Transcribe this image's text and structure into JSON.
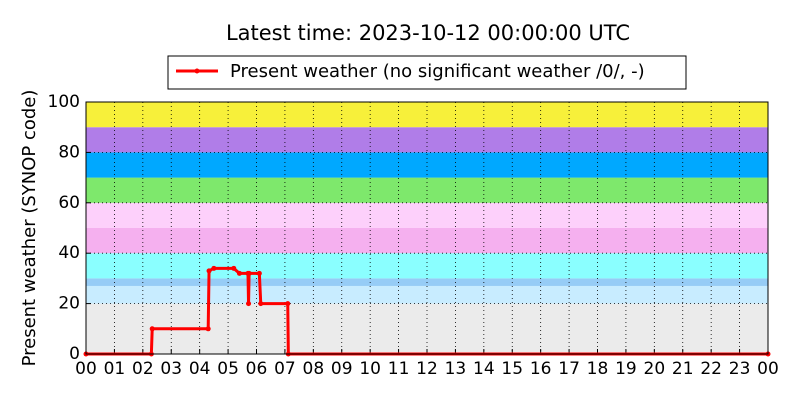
{
  "chart_data": {
    "type": "line",
    "title": "Latest time: 2023-10-12 00:00:00 UTC",
    "y_label": "Present weather (SYNOP code)",
    "bands": [
      {
        "from": 0,
        "to": 20,
        "color": "#ebebeb"
      },
      {
        "from": 20,
        "to": 27,
        "color": "#c8ecff"
      },
      {
        "from": 27,
        "to": 30,
        "color": "#96ccf6"
      },
      {
        "from": 30,
        "to": 40,
        "color": "#8affff"
      },
      {
        "from": 40,
        "to": 50,
        "color": "#f5b0ef"
      },
      {
        "from": 50,
        "to": 60,
        "color": "#fdd0fb"
      },
      {
        "from": 60,
        "to": 70,
        "color": "#7ee86c"
      },
      {
        "from": 70,
        "to": 80,
        "color": "#00a8ff"
      },
      {
        "from": 80,
        "to": 90,
        "color": "#b07de8"
      },
      {
        "from": 90,
        "to": 100,
        "color": "#f7f03a"
      }
    ],
    "x": [
      0,
      2.3,
      2.33,
      4.3,
      4.33,
      4.5,
      5.2,
      5.4,
      5.7,
      5.72,
      5.74,
      6.1,
      6.15,
      7.1,
      7.12,
      24
    ],
    "series": [
      {
        "name": "Present weather (no significant weather /0/, -)",
        "color": "#ff0000",
        "values": [
          0,
          0,
          10,
          10,
          33,
          34,
          34,
          32,
          32,
          20,
          32,
          32,
          20,
          20,
          0,
          0
        ]
      }
    ],
    "xlim": [
      0,
      24
    ],
    "xticks": [
      {
        "value": 0,
        "label": "00"
      },
      {
        "value": 1,
        "label": "01"
      },
      {
        "value": 2,
        "label": "02"
      },
      {
        "value": 3,
        "label": "03"
      },
      {
        "value": 4,
        "label": "04"
      },
      {
        "value": 5,
        "label": "05"
      },
      {
        "value": 6,
        "label": "06"
      },
      {
        "value": 7,
        "label": "07"
      },
      {
        "value": 8,
        "label": "08"
      },
      {
        "value": 9,
        "label": "09"
      },
      {
        "value": 10,
        "label": "10"
      },
      {
        "value": 11,
        "label": "11"
      },
      {
        "value": 12,
        "label": "12"
      },
      {
        "value": 13,
        "label": "13"
      },
      {
        "value": 14,
        "label": "14"
      },
      {
        "value": 15,
        "label": "15"
      },
      {
        "value": 16,
        "label": "16"
      },
      {
        "value": 17,
        "label": "17"
      },
      {
        "value": 18,
        "label": "18"
      },
      {
        "value": 19,
        "label": "19"
      },
      {
        "value": 20,
        "label": "20"
      },
      {
        "value": 21,
        "label": "21"
      },
      {
        "value": 22,
        "label": "22"
      },
      {
        "value": 23,
        "label": "23"
      },
      {
        "value": 24,
        "label": "00"
      }
    ],
    "ylim": [
      0,
      100
    ],
    "yticks": [
      0,
      20,
      40,
      60,
      80,
      100
    ],
    "grid": true,
    "legend": "top"
  }
}
